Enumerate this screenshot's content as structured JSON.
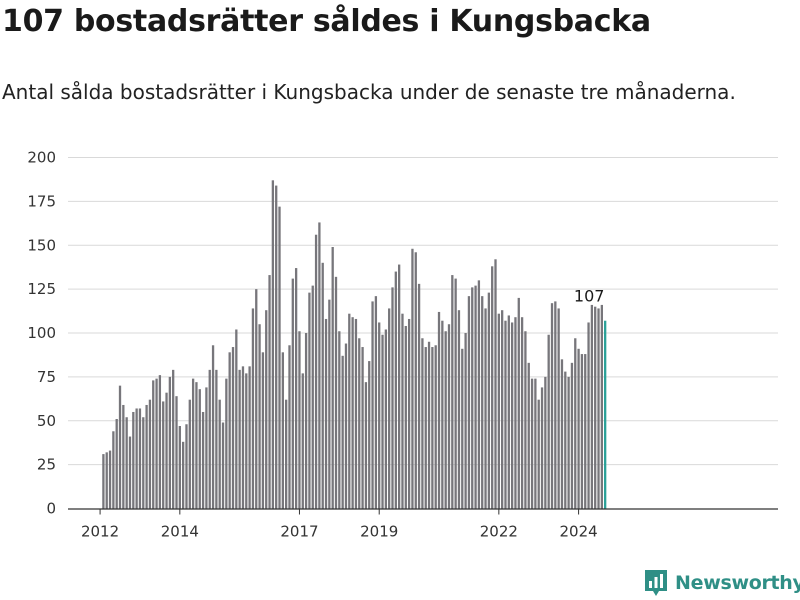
{
  "header": {
    "title": "107 bostadsrätter såldes i Kungsbacka",
    "subtitle": "Antal sålda bostadsrätter i Kungsbacka under de senaste tre månaderna."
  },
  "brand": {
    "name": "Newsworthy",
    "color": "#2f8f86"
  },
  "chart_data": {
    "type": "bar",
    "title": "107 bostadsrätter såldes i Kungsbacka",
    "subtitle": "Antal sålda bostadsrätter i Kungsbacka under de senaste tre månaderna.",
    "x": {
      "start": "2012-02",
      "end": "2024-09",
      "frequency": "monthly",
      "tick_labels": [
        "2012",
        "2014",
        "2017",
        "2019",
        "2022",
        "2024"
      ]
    },
    "ylim": [
      0,
      200
    ],
    "yticks": [
      0,
      25,
      50,
      75,
      100,
      125,
      150,
      175,
      200
    ],
    "grid": true,
    "colors": {
      "bar": "#77767b",
      "highlight": "#2aa198"
    },
    "highlight": {
      "label": "107",
      "value": 107
    },
    "values": [
      31,
      32,
      33,
      44,
      51,
      70,
      59,
      52,
      41,
      55,
      57,
      57,
      52,
      59,
      62,
      73,
      74,
      76,
      61,
      66,
      75,
      79,
      64,
      47,
      38,
      48,
      62,
      74,
      72,
      68,
      55,
      69,
      79,
      93,
      79,
      62,
      49,
      74,
      89,
      92,
      102,
      79,
      81,
      77,
      81,
      114,
      125,
      105,
      89,
      113,
      133,
      187,
      184,
      172,
      89,
      62,
      93,
      131,
      137,
      101,
      77,
      100,
      123,
      127,
      156,
      163,
      140,
      108,
      119,
      149,
      132,
      101,
      87,
      94,
      111,
      109,
      108,
      97,
      92,
      72,
      84,
      118,
      121,
      106,
      99,
      102,
      114,
      126,
      135,
      139,
      111,
      104,
      108,
      148,
      146,
      128,
      97,
      92,
      95,
      92,
      93,
      112,
      107,
      101,
      105,
      133,
      131,
      113,
      91,
      100,
      121,
      126,
      127,
      130,
      121,
      114,
      123,
      138,
      142,
      111,
      113,
      107,
      110,
      106,
      109,
      120,
      109,
      101,
      83,
      74,
      74,
      62,
      69,
      75,
      99,
      117,
      118,
      114,
      85,
      78,
      75,
      83,
      97,
      91,
      88,
      88,
      106,
      116,
      115,
      114,
      116,
      107
    ]
  }
}
